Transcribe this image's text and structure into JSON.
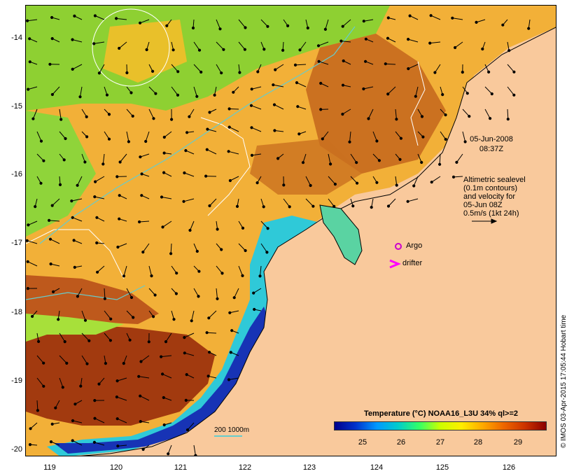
{
  "map": {
    "title": "",
    "y_ticks": [
      "-14",
      "-15",
      "-16",
      "-17",
      "-18",
      "-19",
      "-20"
    ],
    "x_ticks": [
      "119",
      "120",
      "121",
      "122",
      "123",
      "124",
      "125",
      "126"
    ]
  },
  "annotations": {
    "date": "05-Jun-2008",
    "time": "08:37Z",
    "sealevel_lines": [
      "Altimetric sealevel",
      "(0.1m contours)",
      "and velocity for",
      "05-Jun 08Z",
      "0.5m/s (1kt 24h)"
    ],
    "argo_label": "Argo",
    "drifter_label": "drifter",
    "scale_label": "200  1000m"
  },
  "legend": {
    "title": "Temperature (°C) NOAA16_L3U 34% ql>=2",
    "ticks": [
      "25",
      "26",
      "27",
      "28",
      "29"
    ],
    "colors": [
      "#00008b",
      "#0099ff",
      "#33ff66",
      "#ffee00",
      "#ee6600",
      "#8b0000"
    ]
  },
  "credit": "© IMOS 03-Apr-2015 17:05:44 Hobart time",
  "colors": {
    "land": "#f9c99c",
    "contour": "#ffffff",
    "isobath": "#66cccc",
    "argo": "#cc00cc"
  }
}
